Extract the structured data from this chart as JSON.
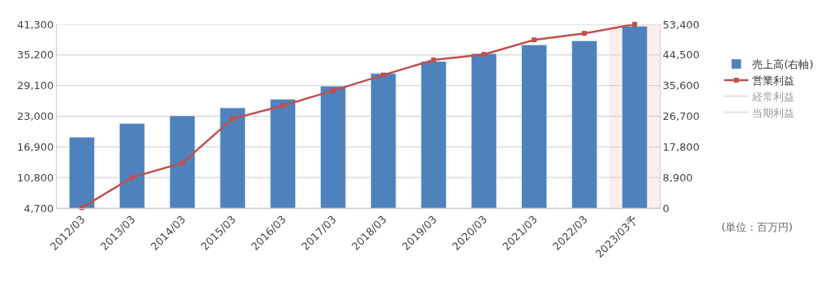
{
  "chart_data": {
    "type": "bar",
    "categories": [
      "2012/03",
      "2013/03",
      "2014/03",
      "2015/03",
      "2016/03",
      "2017/03",
      "2018/03",
      "2019/03",
      "2020/03",
      "2021/03",
      "2022/03",
      "2023/03予"
    ],
    "series": [
      {
        "name": "売上高(右軸)",
        "axis": "y2",
        "color": "#4f81bd",
        "values": [
          20600,
          24600,
          26800,
          29100,
          31600,
          35400,
          39100,
          42600,
          44900,
          47400,
          48600,
          52800
        ]
      },
      {
        "name": "営業利益",
        "type": "line",
        "axis": "y",
        "color": "#c0504d",
        "marker": "square",
        "values": [
          4800,
          10800,
          13700,
          22500,
          25100,
          28100,
          31200,
          34200,
          35300,
          38200,
          39500,
          41300
        ]
      },
      {
        "name": "経常利益",
        "type": "line",
        "axis": "y",
        "color": "#cccccc",
        "marker": "triangle",
        "values": [
          null,
          null,
          null,
          null,
          null,
          null,
          null,
          null,
          null,
          null,
          null,
          null
        ]
      },
      {
        "name": "当期利益",
        "type": "line",
        "axis": "y",
        "color": "#cccccc",
        "marker": "none",
        "values": [
          null,
          null,
          null,
          null,
          null,
          null,
          null,
          null,
          null,
          null,
          null,
          null
        ]
      }
    ],
    "ylim": [
      4700,
      41300
    ],
    "yticks": [
      {
        "value": 4700,
        "label": "4,700"
      },
      {
        "value": 10800,
        "label": "10,800"
      },
      {
        "value": 16900,
        "label": "16,900"
      },
      {
        "value": 23000,
        "label": "23,000"
      },
      {
        "value": 29100,
        "label": "29,100"
      },
      {
        "value": 35200,
        "label": "35,200"
      },
      {
        "value": 41300,
        "label": "41,300"
      }
    ],
    "y2lim": [
      0,
      53400
    ],
    "y2ticks": [
      0,
      {
        "value": 8900,
        "label": "8,900"
      },
      {
        "value": 17800,
        "label": "17,800"
      },
      {
        "value": 26700,
        "label": "26,700"
      },
      {
        "value": 35600,
        "label": "35,600"
      },
      {
        "value": 44500,
        "label": "44,500"
      },
      {
        "value": 53400,
        "label": "53,400"
      }
    ],
    "bands": [
      {
        "axis": "x",
        "from": "2023/03予",
        "to": "2023/03予",
        "color": "#fdeeee"
      }
    ],
    "annotations": [
      "(単位：百万円)"
    ],
    "grid": "y",
    "legend": "right"
  }
}
